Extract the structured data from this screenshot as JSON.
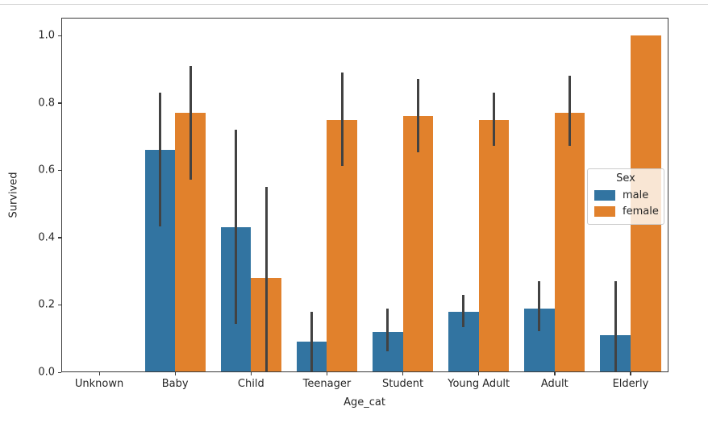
{
  "figure": {
    "y_axis_label": "Survived",
    "x_axis_label": "Age_cat"
  },
  "legend": {
    "title": "Sex",
    "position": "center right"
  },
  "colors": {
    "male": "#3274a1",
    "female": "#e1812c",
    "error_bar": "#424242",
    "spine": "#3a3a3a",
    "top_rule": "#d8d8d8"
  },
  "chart_data": {
    "type": "bar",
    "title": "",
    "xlabel": "Age_cat",
    "ylabel": "Survived",
    "ylim": [
      0,
      1.053
    ],
    "yticks": [
      0.0,
      0.2,
      0.4,
      0.6,
      0.8,
      1.0
    ],
    "ytick_labels": [
      "0.0",
      "0.2",
      "0.4",
      "0.6",
      "0.8",
      "1.0"
    ],
    "grid": false,
    "legend_title": "Sex",
    "legend_position": "center right",
    "categories": [
      "Unknown",
      "Baby",
      "Child",
      "Teenager",
      "Student",
      "Young Adult",
      "Adult",
      "Elderly"
    ],
    "series": [
      {
        "name": "male",
        "color": "#3274a1",
        "values": [
          0.0,
          0.66,
          0.43,
          0.09,
          0.12,
          0.18,
          0.19,
          0.11
        ],
        "ci_low": [
          null,
          0.43,
          0.14,
          0.0,
          0.06,
          0.13,
          0.12,
          0.0
        ],
        "ci_high": [
          null,
          0.83,
          0.72,
          0.18,
          0.19,
          0.23,
          0.27,
          0.27
        ]
      },
      {
        "name": "female",
        "color": "#e1812c",
        "values": [
          0.0,
          0.77,
          0.28,
          0.75,
          0.76,
          0.75,
          0.77,
          1.0
        ],
        "ci_low": [
          null,
          0.57,
          0.0,
          0.61,
          0.65,
          0.67,
          0.67,
          null
        ],
        "ci_high": [
          null,
          0.91,
          0.55,
          0.89,
          0.87,
          0.83,
          0.88,
          null
        ]
      }
    ],
    "error_bar_color": "#424242"
  }
}
